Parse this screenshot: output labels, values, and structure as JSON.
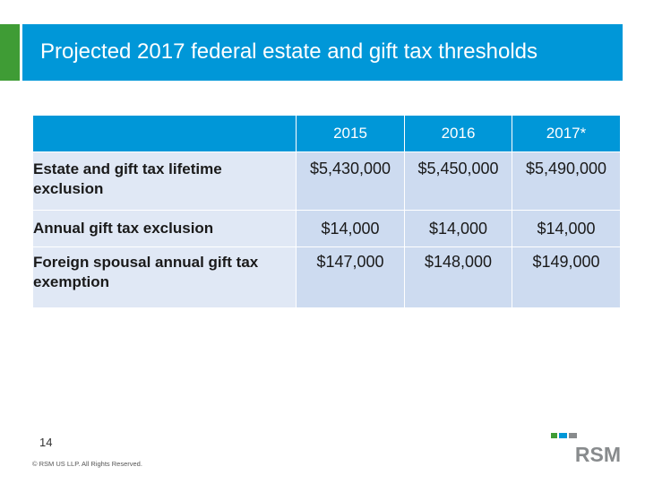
{
  "slide": {
    "title": "Projected 2017 federal estate and gift tax thresholds",
    "page_number": "14",
    "copyright": "© RSM US LLP. All Rights Reserved.",
    "logo_text": "RSM"
  },
  "table": {
    "columns": [
      "",
      "2015",
      "2016",
      "2017*"
    ],
    "rows": [
      {
        "label": "Estate and gift tax lifetime exclusion",
        "values": [
          "$5,430,000",
          "$5,450,000",
          "$5,490,000"
        ]
      },
      {
        "label": "Annual gift tax exclusion",
        "values": [
          "$14,000",
          "$14,000",
          "$14,000"
        ]
      },
      {
        "label": "Foreign spousal annual gift tax exemption",
        "values": [
          "$147,000",
          "$148,000",
          "$149,000"
        ]
      }
    ]
  },
  "colors": {
    "title_band": "#0097d8",
    "accent_green": "#3f9c35",
    "row_label_bg": "#e0e8f5",
    "value_bg": "#cddbf0",
    "logo_blue": "#0097d8",
    "logo_gray": "#888b8d"
  }
}
